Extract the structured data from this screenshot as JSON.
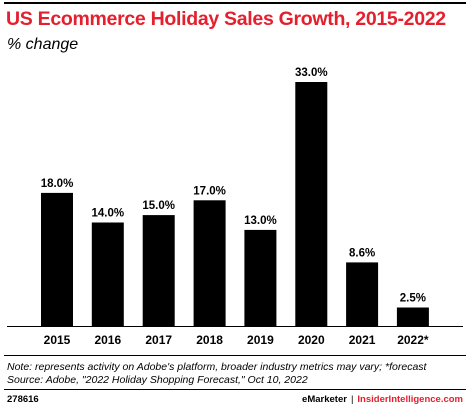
{
  "chart_data": {
    "type": "bar",
    "title": "US Ecommerce Holiday Sales Growth, 2015-2022",
    "subtitle": "% change",
    "categories": [
      "2015",
      "2016",
      "2017",
      "2018",
      "2019",
      "2020",
      "2021",
      "2022*"
    ],
    "values": [
      18.0,
      14.0,
      15.0,
      17.0,
      13.0,
      33.0,
      8.6,
      2.5
    ],
    "value_labels": [
      "18.0%",
      "14.0%",
      "15.0%",
      "17.0%",
      "13.0%",
      "33.0%",
      "8.6%",
      "2.5%"
    ],
    "ylim": [
      0,
      33.0
    ],
    "grid": false,
    "bar_color": "#000000",
    "xlabel": "",
    "ylabel": ""
  },
  "footer": {
    "note": "Note: represents activity on Adobe's platform, broader industry metrics may vary; *forecast",
    "source": "Source: Adobe, \"2022 Holiday Shopping Forecast,\" Oct 10, 2022",
    "chart_id": "278616",
    "brand_left": "eMarketer",
    "separator": "|",
    "brand_right": "InsiderIntelligence.com"
  },
  "colors": {
    "title": "#e4202e",
    "accent": "#e4202e",
    "text": "#000000"
  }
}
